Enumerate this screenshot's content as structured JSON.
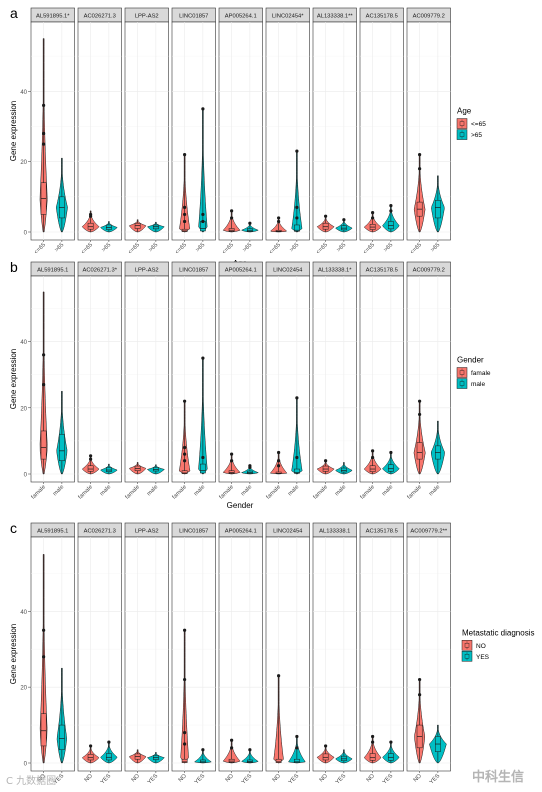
{
  "figure": {
    "watermark_left": "C 九数据圈",
    "watermark_right": "中科生信"
  },
  "chart_data": [
    {
      "type": "violin",
      "panel_label": "a",
      "xlabel": "Age",
      "ylabel": "Gene expression",
      "ylim": [
        0,
        58
      ],
      "yticks": [
        0,
        20,
        40
      ],
      "legend": {
        "title": "Age",
        "placement": "right",
        "entries": [
          {
            "name": "<=65",
            "color": "#F8766D"
          },
          {
            "name": ">65",
            "color": "#00BFC4"
          }
        ]
      },
      "group_ticks": [
        "<=65",
        ">65"
      ],
      "facets": [
        {
          "title": "AL591895.1*",
          "groups": [
            {
              "group": "<=65",
              "max": 55,
              "q3": 14,
              "median": 9.5,
              "q1": 5,
              "outliers": [
                36,
                28,
                25
              ]
            },
            {
              "group": ">65",
              "max": 21,
              "q3": 10,
              "median": 7,
              "q1": 4,
              "outliers": []
            }
          ]
        },
        {
          "title": "AC026271.3",
          "groups": [
            {
              "group": "<=65",
              "max": 6,
              "q3": 2.5,
              "median": 1.5,
              "q1": 0.8,
              "outliers": [
                5,
                4.5
              ]
            },
            {
              "group": ">65",
              "max": 3,
              "q3": 2,
              "median": 1.3,
              "q1": 0.7,
              "outliers": []
            }
          ]
        },
        {
          "title": "LPP-AS2",
          "groups": [
            {
              "group": "<=65",
              "max": 3.5,
              "q3": 2.5,
              "median": 1.8,
              "q1": 1,
              "outliers": []
            },
            {
              "group": ">65",
              "max": 2.8,
              "q3": 2,
              "median": 1.5,
              "q1": 0.9,
              "outliers": []
            }
          ]
        },
        {
          "title": "LINC01857",
          "groups": [
            {
              "group": "<=65",
              "max": 22,
              "q3": 0.8,
              "median": 0.3,
              "q1": 0.1,
              "outliers": [
                22,
                7,
                5,
                3
              ]
            },
            {
              "group": ">65",
              "max": 35,
              "q3": 3,
              "median": 1,
              "q1": 0.3,
              "outliers": [
                35,
                5,
                3
              ]
            }
          ]
        },
        {
          "title": "AP005264.1",
          "groups": [
            {
              "group": "<=65",
              "max": 6,
              "q3": 1,
              "median": 0.5,
              "q1": 0.2,
              "outliers": [
                6,
                4
              ]
            },
            {
              "group": ">65",
              "max": 2.5,
              "q3": 1,
              "median": 0.5,
              "q1": 0.2,
              "outliers": [
                2.5
              ]
            }
          ]
        },
        {
          "title": "LINC02454*",
          "groups": [
            {
              "group": "<=65",
              "max": 4,
              "q3": 0.5,
              "median": 0.2,
              "q1": 0.1,
              "outliers": [
                4,
                3
              ]
            },
            {
              "group": ">65",
              "max": 23,
              "q3": 2,
              "median": 0.5,
              "q1": 0.2,
              "outliers": [
                23,
                7,
                4
              ]
            }
          ]
        },
        {
          "title": "AL133338.1**",
          "groups": [
            {
              "group": "<=65",
              "max": 4.5,
              "q3": 2.5,
              "median": 1.5,
              "q1": 0.8,
              "outliers": [
                4.5
              ]
            },
            {
              "group": ">65",
              "max": 3.5,
              "q3": 1.8,
              "median": 1.1,
              "q1": 0.6,
              "outliers": [
                3.5
              ]
            }
          ]
        },
        {
          "title": "AC135178.5",
          "groups": [
            {
              "group": "<=65",
              "max": 5.5,
              "q3": 2.2,
              "median": 1.4,
              "q1": 0.7,
              "outliers": [
                5.5,
                4
              ]
            },
            {
              "group": ">65",
              "max": 7.5,
              "q3": 3,
              "median": 1.8,
              "q1": 0.9,
              "outliers": [
                7.5,
                6
              ]
            }
          ]
        },
        {
          "title": "AC009779.2",
          "groups": [
            {
              "group": "<=65",
              "max": 22,
              "q3": 8.5,
              "median": 6.5,
              "q1": 4.5,
              "outliers": [
                22,
                18
              ]
            },
            {
              "group": ">65",
              "max": 16,
              "q3": 9,
              "median": 7,
              "q1": 4,
              "outliers": []
            }
          ]
        }
      ]
    },
    {
      "type": "violin",
      "panel_label": "b",
      "xlabel": "Gender",
      "ylabel": "Gene expression",
      "ylim": [
        0,
        58
      ],
      "yticks": [
        0,
        20,
        40
      ],
      "legend": {
        "title": "Gender",
        "placement": "right",
        "entries": [
          {
            "name": "famale",
            "color": "#F8766D"
          },
          {
            "name": "male",
            "color": "#00BFC4"
          }
        ]
      },
      "group_ticks": [
        "famale",
        "male"
      ],
      "facets": [
        {
          "title": "AL591895.1",
          "groups": [
            {
              "group": "famale",
              "max": 55,
              "q3": 13,
              "median": 8,
              "q1": 4.5,
              "outliers": [
                36,
                27
              ]
            },
            {
              "group": "male",
              "max": 25,
              "q3": 12,
              "median": 7,
              "q1": 4,
              "outliers": []
            }
          ]
        },
        {
          "title": "AC026271.3*",
          "groups": [
            {
              "group": "famale",
              "max": 5.5,
              "q3": 2.5,
              "median": 1.5,
              "q1": 0.8,
              "outliers": [
                5.5,
                4.5
              ]
            },
            {
              "group": "male",
              "max": 3,
              "q3": 2,
              "median": 1.2,
              "q1": 0.7,
              "outliers": []
            }
          ]
        },
        {
          "title": "LPP-AS2",
          "groups": [
            {
              "group": "famale",
              "max": 3.5,
              "q3": 2.4,
              "median": 1.7,
              "q1": 1,
              "outliers": []
            },
            {
              "group": "male",
              "max": 2.8,
              "q3": 2,
              "median": 1.4,
              "q1": 0.9,
              "outliers": []
            }
          ]
        },
        {
          "title": "LINC01857",
          "groups": [
            {
              "group": "famale",
              "max": 22,
              "q3": 1,
              "median": 0.3,
              "q1": 0.1,
              "outliers": [
                22,
                8,
                6,
                4
              ]
            },
            {
              "group": "male",
              "max": 35,
              "q3": 3,
              "median": 1,
              "q1": 0.3,
              "outliers": [
                35,
                5
              ]
            }
          ]
        },
        {
          "title": "AP005264.1",
          "groups": [
            {
              "group": "famale",
              "max": 6,
              "q3": 1,
              "median": 0.5,
              "q1": 0.2,
              "outliers": [
                6,
                4
              ]
            },
            {
              "group": "male",
              "max": 2.5,
              "q3": 0.9,
              "median": 0.4,
              "q1": 0.2,
              "outliers": [
                2.5,
                2
              ]
            }
          ]
        },
        {
          "title": "LINC02454",
          "groups": [
            {
              "group": "famale",
              "max": 6.5,
              "q3": 0.6,
              "median": 0.2,
              "q1": 0.1,
              "outliers": [
                6.5,
                4,
                2.5
              ]
            },
            {
              "group": "male",
              "max": 23,
              "q3": 1.5,
              "median": 0.4,
              "q1": 0.2,
              "outliers": [
                23,
                5
              ]
            }
          ]
        },
        {
          "title": "AL133338.1*",
          "groups": [
            {
              "group": "famale",
              "max": 4,
              "q3": 2.4,
              "median": 1.5,
              "q1": 0.8,
              "outliers": [
                4
              ]
            },
            {
              "group": "male",
              "max": 3.5,
              "q3": 1.8,
              "median": 1.1,
              "q1": 0.6,
              "outliers": []
            }
          ]
        },
        {
          "title": "AC135178.5",
          "groups": [
            {
              "group": "famale",
              "max": 7,
              "q3": 2.5,
              "median": 1.5,
              "q1": 0.7,
              "outliers": [
                7,
                5
              ]
            },
            {
              "group": "male",
              "max": 6.5,
              "q3": 2.8,
              "median": 1.6,
              "q1": 0.8,
              "outliers": [
                6.5
              ]
            }
          ]
        },
        {
          "title": "AC009779.2",
          "groups": [
            {
              "group": "famale",
              "max": 22,
              "q3": 9.5,
              "median": 6.5,
              "q1": 4.5,
              "outliers": [
                22,
                18
              ]
            },
            {
              "group": "male",
              "max": 16,
              "q3": 8.5,
              "median": 6.5,
              "q1": 4.5,
              "outliers": []
            }
          ]
        }
      ]
    },
    {
      "type": "violin",
      "panel_label": "c",
      "xlabel": "Metastatic diagnosis",
      "ylabel": "Gene expression",
      "ylim": [
        0,
        58
      ],
      "yticks": [
        0,
        20,
        40
      ],
      "legend": {
        "title": "Metastatic diagnosis",
        "placement": "right",
        "entries": [
          {
            "name": "NO",
            "color": "#F8766D"
          },
          {
            "name": "YES",
            "color": "#00BFC4"
          }
        ]
      },
      "group_ticks": [
        "NO",
        "YES"
      ],
      "facets": [
        {
          "title": "AL591895.1",
          "groups": [
            {
              "group": "NO",
              "max": 55,
              "q3": 13,
              "median": 8.5,
              "q1": 4.5,
              "outliers": [
                35,
                28
              ]
            },
            {
              "group": "YES",
              "max": 25,
              "q3": 10,
              "median": 6.5,
              "q1": 3.5,
              "outliers": []
            }
          ]
        },
        {
          "title": "AC026271.3",
          "groups": [
            {
              "group": "NO",
              "max": 4.5,
              "q3": 2.3,
              "median": 1.4,
              "q1": 0.8,
              "outliers": [
                4.5
              ]
            },
            {
              "group": "YES",
              "max": 5.5,
              "q3": 2.5,
              "median": 1.5,
              "q1": 0.8,
              "outliers": [
                5.5
              ]
            }
          ]
        },
        {
          "title": "LPP-AS2",
          "groups": [
            {
              "group": "NO",
              "max": 3.5,
              "q3": 2.4,
              "median": 1.7,
              "q1": 1,
              "outliers": []
            },
            {
              "group": "YES",
              "max": 2.8,
              "q3": 2,
              "median": 1.4,
              "q1": 0.9,
              "outliers": []
            }
          ]
        },
        {
          "title": "LINC01857",
          "groups": [
            {
              "group": "NO",
              "max": 35,
              "q3": 1,
              "median": 0.3,
              "q1": 0.1,
              "outliers": [
                35,
                22,
                8,
                5
              ]
            },
            {
              "group": "YES",
              "max": 3.5,
              "q3": 0.8,
              "median": 0.3,
              "q1": 0.1,
              "outliers": [
                3.5
              ]
            }
          ]
        },
        {
          "title": "AP005264.1",
          "groups": [
            {
              "group": "NO",
              "max": 6,
              "q3": 1,
              "median": 0.5,
              "q1": 0.2,
              "outliers": [
                6,
                4
              ]
            },
            {
              "group": "YES",
              "max": 3.5,
              "q3": 0.8,
              "median": 0.4,
              "q1": 0.2,
              "outliers": [
                3.5
              ]
            }
          ]
        },
        {
          "title": "LINC02454",
          "groups": [
            {
              "group": "NO",
              "max": 23,
              "q3": 1,
              "median": 0.3,
              "q1": 0.1,
              "outliers": [
                23
              ]
            },
            {
              "group": "YES",
              "max": 7,
              "q3": 1,
              "median": 0.3,
              "q1": 0.1,
              "outliers": [
                7,
                4
              ]
            }
          ]
        },
        {
          "title": "AL133338.1",
          "groups": [
            {
              "group": "NO",
              "max": 4.5,
              "q3": 2.4,
              "median": 1.5,
              "q1": 0.8,
              "outliers": [
                4.5
              ]
            },
            {
              "group": "YES",
              "max": 3.5,
              "q3": 1.8,
              "median": 1.1,
              "q1": 0.6,
              "outliers": []
            }
          ]
        },
        {
          "title": "AC135178.5",
          "groups": [
            {
              "group": "NO",
              "max": 7,
              "q3": 2.5,
              "median": 1.4,
              "q1": 0.7,
              "outliers": [
                7,
                5.5
              ]
            },
            {
              "group": "YES",
              "max": 5.5,
              "q3": 2.5,
              "median": 1.5,
              "q1": 0.7,
              "outliers": [
                5.5
              ]
            }
          ]
        },
        {
          "title": "AC009779.2**",
          "groups": [
            {
              "group": "NO",
              "max": 22,
              "q3": 10,
              "median": 7,
              "q1": 4,
              "outliers": [
                22,
                18
              ]
            },
            {
              "group": "YES",
              "max": 10,
              "q3": 7,
              "median": 5,
              "q1": 3,
              "outliers": []
            }
          ]
        }
      ]
    }
  ]
}
